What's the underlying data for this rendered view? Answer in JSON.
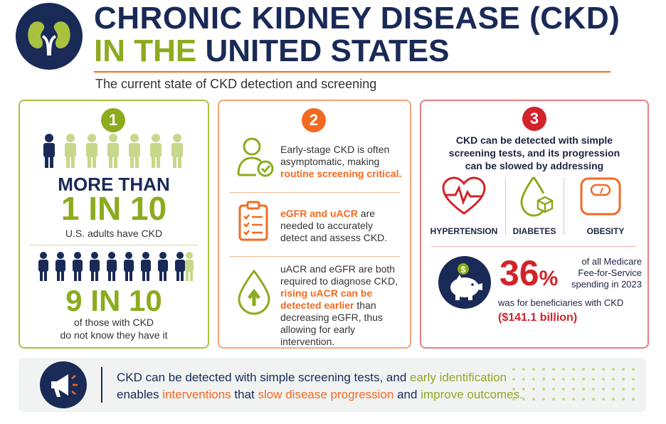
{
  "header": {
    "title_line1": "CHRONIC KIDNEY DISEASE (CKD)",
    "title_line2_green": "IN THE",
    "title_line2_navy": "UNITED STATES",
    "subtitle": "The current state of CKD detection and screening"
  },
  "panel1": {
    "number": "1",
    "stat1_pre": "MORE THAN",
    "stat1_big": "1 IN 10",
    "stat1_caption": "U.S. adults have CKD",
    "stat2_big": "9 IN 10",
    "stat2_caption_line1": "of those with CKD",
    "stat2_caption_line2": "do not know they have it"
  },
  "panel2": {
    "number": "2",
    "item1_line1": "Early-stage CKD is often",
    "item1_line2": "asymptomatic, making",
    "item1_highlight": "routine screening critical.",
    "item2_highlight": "eGFR and uACR",
    "item2_line1_rest": " are",
    "item2_line2": "needed to accurately",
    "item2_line3": "detect and assess CKD.",
    "item3_line1": "uACR and eGFR are both",
    "item3_line2": "required to diagnose CKD,",
    "item3_highlight1": "rising uACR can be",
    "item3_highlight2": "detected earlier",
    "item3_line4_rest": " than",
    "item3_line5": "decreasing eGFR, thus",
    "item3_line6": "allowing for early intervention."
  },
  "panel3": {
    "number": "3",
    "intro_line1": "CKD can be detected with simple",
    "intro_line2": "screening tests, and its progression",
    "intro_line3": "can be slowed by addressing",
    "conditions": [
      "HYPERTENSION",
      "DIABETES",
      "OBESITY"
    ],
    "percent_value": "36",
    "percent_sign": "%",
    "medicare_line1": "of all Medicare",
    "medicare_line2": "Fee-for-Service",
    "medicare_line3": "spending in 2023",
    "beneficiaries": "was for beneficiaries with CKD",
    "amount": "($141.1 billion)"
  },
  "banner": {
    "line1_a": "CKD can be detected with simple screening tests, and ",
    "line1_b": "early identification",
    "line2_a": "enables ",
    "line2_b": "interventions",
    "line2_c": " that ",
    "line2_d": "slow disease progression",
    "line2_e": " and ",
    "line2_f": "improve outcomes."
  },
  "colors": {
    "navy": "#1a2a57",
    "green": "#8cab1e",
    "orange": "#f26a21",
    "red": "#d2232a"
  }
}
